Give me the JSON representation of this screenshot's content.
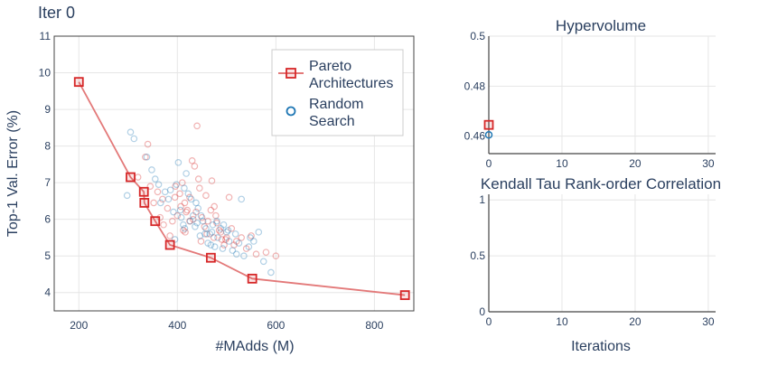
{
  "header": {
    "title": "Iter 0"
  },
  "colors": {
    "pareto": "#d62728",
    "pareto_line": "#e37979",
    "random": "#1f77b4",
    "grid": "#e6e6e6",
    "axis": "#444444",
    "text": "#2a3f5f"
  },
  "chart_data": [
    {
      "type": "scatter",
      "title": "",
      "xlabel": "#MAdds (M)",
      "ylabel": "Top-1 Val. Error (%)",
      "xlim": [
        150,
        880
      ],
      "ylim": [
        3.5,
        11
      ],
      "xticks": [
        200,
        400,
        600,
        800
      ],
      "yticks": [
        4,
        5,
        6,
        7,
        8,
        9,
        10,
        11
      ],
      "grid": true,
      "legend": {
        "position": "top-right",
        "entries": [
          "Pareto\nArchitectures",
          "Random\nSearch"
        ]
      },
      "series": [
        {
          "name": "Pareto Architectures",
          "marker": "square-line",
          "points": [
            [
              200,
              9.75
            ],
            [
              305,
              7.15
            ],
            [
              332,
              6.75
            ],
            [
              333,
              6.45
            ],
            [
              355,
              5.95
            ],
            [
              385,
              5.3
            ],
            [
              468,
              4.95
            ],
            [
              552,
              4.38
            ],
            [
              862,
              3.93
            ]
          ]
        },
        {
          "name": "Pareto Architectures",
          "marker": "faded-circle",
          "points": [
            [
              340,
              8.05
            ],
            [
              335,
              7.7
            ],
            [
              320,
              7.15
            ],
            [
              345,
              6.9
            ],
            [
              360,
              6.75
            ],
            [
              370,
              6.55
            ],
            [
              380,
              6.3
            ],
            [
              395,
              6.6
            ],
            [
              400,
              6.1
            ],
            [
              410,
              7.0
            ],
            [
              415,
              6.45
            ],
            [
              420,
              6.25
            ],
            [
              425,
              5.95
            ],
            [
              430,
              7.6
            ],
            [
              435,
              7.45
            ],
            [
              440,
              8.55
            ],
            [
              445,
              6.85
            ],
            [
              450,
              6.05
            ],
            [
              455,
              5.8
            ],
            [
              460,
              5.6
            ],
            [
              470,
              7.05
            ],
            [
              475,
              6.35
            ],
            [
              480,
              5.9
            ],
            [
              485,
              5.7
            ],
            [
              490,
              5.45
            ],
            [
              495,
              5.3
            ],
            [
              500,
              5.5
            ],
            [
              505,
              6.6
            ],
            [
              510,
              5.75
            ],
            [
              515,
              5.3
            ],
            [
              520,
              5.4
            ],
            [
              530,
              5.5
            ],
            [
              540,
              5.2
            ],
            [
              550,
              5.55
            ],
            [
              560,
              5.05
            ],
            [
              580,
              5.1
            ],
            [
              600,
              5.0
            ],
            [
              352,
              6.45
            ],
            [
              365,
              6.05
            ],
            [
              390,
              5.95
            ],
            [
              405,
              6.7
            ],
            [
              412,
              5.7
            ],
            [
              418,
              6.2
            ],
            [
              432,
              6.0
            ],
            [
              438,
              6.2
            ],
            [
              448,
              5.4
            ],
            [
              462,
              5.95
            ],
            [
              468,
              6.25
            ],
            [
              478,
              6.1
            ],
            [
              488,
              5.65
            ],
            [
              498,
              5.45
            ],
            [
              385,
              5.55
            ],
            [
              372,
              5.85
            ],
            [
              425,
              6.6
            ],
            [
              443,
              7.1
            ],
            [
              458,
              6.65
            ],
            [
              407,
              6.35
            ],
            [
              396,
              6.9
            ],
            [
              416,
              5.65
            ],
            [
              474,
              5.5
            ]
          ]
        },
        {
          "name": "Random Search",
          "marker": "faded-circle",
          "points": [
            [
              298,
              6.65
            ],
            [
              305,
              8.38
            ],
            [
              312,
              8.2
            ],
            [
              338,
              7.7
            ],
            [
              348,
              7.35
            ],
            [
              362,
              6.95
            ],
            [
              375,
              6.75
            ],
            [
              382,
              6.55
            ],
            [
              392,
              6.2
            ],
            [
              398,
              6.95
            ],
            [
              402,
              7.55
            ],
            [
              408,
              6.05
            ],
            [
              412,
              5.85
            ],
            [
              418,
              7.25
            ],
            [
              422,
              6.7
            ],
            [
              428,
              6.55
            ],
            [
              432,
              6.1
            ],
            [
              436,
              5.8
            ],
            [
              442,
              6.3
            ],
            [
              446,
              5.55
            ],
            [
              452,
              5.95
            ],
            [
              458,
              5.75
            ],
            [
              462,
              5.35
            ],
            [
              466,
              5.6
            ],
            [
              472,
              5.85
            ],
            [
              476,
              5.25
            ],
            [
              482,
              5.5
            ],
            [
              488,
              5.75
            ],
            [
              494,
              5.85
            ],
            [
              500,
              5.65
            ],
            [
              505,
              5.4
            ],
            [
              512,
              5.15
            ],
            [
              518,
              5.6
            ],
            [
              525,
              5.35
            ],
            [
              530,
              6.55
            ],
            [
              535,
              5.0
            ],
            [
              545,
              5.25
            ],
            [
              555,
              5.4
            ],
            [
              565,
              5.65
            ],
            [
              575,
              4.85
            ],
            [
              590,
              4.55
            ],
            [
              355,
              7.1
            ],
            [
              366,
              6.45
            ],
            [
              386,
              6.8
            ],
            [
              395,
              5.45
            ],
            [
              406,
              6.25
            ],
            [
              414,
              6.85
            ],
            [
              426,
              5.95
            ],
            [
              438,
              6.45
            ],
            [
              448,
              6.1
            ],
            [
              456,
              5.6
            ],
            [
              468,
              5.3
            ],
            [
              480,
              5.95
            ],
            [
              492,
              5.2
            ],
            [
              503,
              5.7
            ],
            [
              415,
              5.75
            ],
            [
              440,
              5.9
            ],
            [
              470,
              5.65
            ],
            [
              520,
              5.05
            ],
            [
              548,
              5.5
            ]
          ]
        }
      ]
    },
    {
      "type": "scatter",
      "title": "Hypervolume",
      "xlabel": "",
      "ylabel": "",
      "xlim": [
        0,
        31
      ],
      "ylim": [
        0.453,
        0.5
      ],
      "xticks": [
        0,
        10,
        20,
        30
      ],
      "yticks": [
        0.46,
        0.48,
        0.5
      ],
      "yticklabels": [
        "0.46",
        "0.48",
        "0.5"
      ],
      "grid": true,
      "series": [
        {
          "name": "Pareto Architectures",
          "marker": "square",
          "points": [
            [
              0,
              0.4645
            ]
          ]
        },
        {
          "name": "Random Search",
          "marker": "circle",
          "points": [
            [
              0,
              0.4605
            ]
          ]
        }
      ]
    },
    {
      "type": "scatter",
      "title": "Kendall Tau Rank-order Correlation",
      "xlabel": "Iterations",
      "ylabel": "",
      "xlim": [
        0,
        31
      ],
      "ylim": [
        0,
        1.05
      ],
      "xticks": [
        0,
        10,
        20,
        30
      ],
      "yticks": [
        0,
        0.5,
        1
      ],
      "yticklabels": [
        "0",
        "0.5",
        "1"
      ],
      "grid": true,
      "series": []
    }
  ]
}
